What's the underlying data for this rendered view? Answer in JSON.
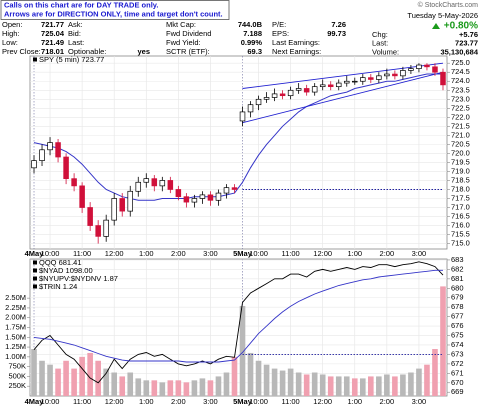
{
  "note": [
    "Calls on this chart are for DAY TRADE only.",
    "Arrows are for DIRECTION ONLY, time and target don't count."
  ],
  "credit": "© StockCharts.com",
  "header": {
    "columns": [
      [
        {
          "label": "Open:",
          "value": "721.77"
        },
        {
          "label": "High:",
          "value": "725.04"
        },
        {
          "label": "Low:",
          "value": "721.49"
        },
        {
          "label": "Prev Close:",
          "value": "718.01"
        }
      ],
      [
        {
          "label": "Ask:"
        },
        {
          "label": "Bid:"
        },
        {
          "label": "Last:"
        },
        {
          "label": "Optionable:",
          "value": "yes"
        }
      ],
      [
        {
          "label": "Mkt Cap:",
          "value": "744.0B"
        },
        {
          "label": "Fwd Dividend",
          "value": "7.188"
        },
        {
          "label": "Fwd Yield:",
          "value": "0.99%"
        },
        {
          "label": "SCTR (ETF):",
          "value": "69.3"
        }
      ],
      [
        {
          "label": "P/E:",
          "value": "7.26"
        },
        {
          "label": "EPS:",
          "value": "99.73"
        },
        {
          "label": "Last Earnings:"
        },
        {
          "label": "Next Earnings:"
        }
      ]
    ],
    "date": "Tuesday  5-May-2026",
    "change_pct": "+0.80%",
    "summary": [
      {
        "label": "Chg:",
        "value": "+5.76"
      },
      {
        "label": "Last:",
        "value": "723.77"
      },
      {
        "label": "Volume:",
        "value": "35,130,684"
      }
    ]
  },
  "chart_data": [
    {
      "type": "candlestick",
      "legend": "SPY (5 min) 723.77",
      "categories": [
        "4May",
        null,
        "10:00",
        null,
        null,
        null,
        "11:00",
        null,
        null,
        null,
        "12:00",
        null,
        null,
        null,
        "1:00",
        null,
        null,
        null,
        "2:00",
        null,
        null,
        null,
        "3:00",
        null,
        null,
        null,
        "5May",
        null,
        "10:00",
        null,
        null,
        null,
        "11:00",
        null,
        null,
        null,
        "12:00",
        null,
        null,
        null,
        "1:00",
        null,
        null,
        null,
        "2:00",
        null,
        null,
        null,
        "3:00",
        null,
        null,
        null
      ],
      "open": [
        719.2,
        719.6,
        720.2,
        720.6,
        719.8,
        718.6,
        718.2,
        717.0,
        716.0,
        715.4,
        716.3,
        717.5,
        716.8,
        717.9,
        718.4,
        718.6,
        718.2,
        718.5,
        718.0,
        717.6,
        717.3,
        717.5,
        717.7,
        717.4,
        717.8,
        718.1,
        721.8,
        722.3,
        722.7,
        723.0,
        723.1,
        723.3,
        723.2,
        723.5,
        723.6,
        723.4,
        723.7,
        723.8,
        723.7,
        723.9,
        724.0,
        724.0,
        724.2,
        724.1,
        724.3,
        724.4,
        724.3,
        724.6,
        724.7,
        724.9,
        724.8,
        724.5
      ],
      "high": [
        719.9,
        720.5,
        720.9,
        720.8,
        720.0,
        718.9,
        718.4,
        717.3,
        716.3,
        716.6,
        717.8,
        717.8,
        718.2,
        718.7,
        718.9,
        718.8,
        718.7,
        718.7,
        718.2,
        717.8,
        717.7,
        717.9,
        717.9,
        718.0,
        718.3,
        718.3,
        722.6,
        722.9,
        723.2,
        723.4,
        723.6,
        723.5,
        723.7,
        723.9,
        723.8,
        723.9,
        724.1,
        724.0,
        724.1,
        724.3,
        724.2,
        724.4,
        724.4,
        724.5,
        724.7,
        724.6,
        724.8,
        724.9,
        725.0,
        725.0,
        725.0,
        724.7
      ],
      "low": [
        718.9,
        719.3,
        719.9,
        719.5,
        718.3,
        717.9,
        716.7,
        715.7,
        715.0,
        715.1,
        716.0,
        716.5,
        716.5,
        717.6,
        718.1,
        717.9,
        717.9,
        717.8,
        717.4,
        717.0,
        717.0,
        717.2,
        717.1,
        717.1,
        717.5,
        717.8,
        721.5,
        722.0,
        722.4,
        722.8,
        722.9,
        723.0,
        723.0,
        723.3,
        723.2,
        723.2,
        723.5,
        723.5,
        723.5,
        723.7,
        723.8,
        723.8,
        723.9,
        723.9,
        724.1,
        724.1,
        724.1,
        724.4,
        724.5,
        724.6,
        724.3,
        723.5
      ],
      "close": [
        719.6,
        720.2,
        720.6,
        719.8,
        718.6,
        718.2,
        717.0,
        716.0,
        715.4,
        716.3,
        717.5,
        716.8,
        717.9,
        718.4,
        718.6,
        718.2,
        718.5,
        718.0,
        717.6,
        717.3,
        717.5,
        717.7,
        717.4,
        717.8,
        718.1,
        718.0,
        722.3,
        722.7,
        723.0,
        723.1,
        723.3,
        723.2,
        723.5,
        723.6,
        723.4,
        723.7,
        723.8,
        723.7,
        723.9,
        724.0,
        724.0,
        724.2,
        724.1,
        724.3,
        724.4,
        724.3,
        724.6,
        724.7,
        724.9,
        724.8,
        724.5,
        723.8
      ],
      "up_color": "#000000",
      "down_color": "#d0103a",
      "overlays": [
        {
          "color": "#3535c8",
          "values": [
            720.6,
            720.5,
            720.4,
            720.3,
            720.1,
            719.8,
            719.4,
            718.9,
            718.4,
            718.0,
            717.8,
            717.6,
            717.5,
            717.4,
            717.4,
            717.4,
            717.5,
            717.5,
            717.5,
            717.5,
            717.6,
            717.6,
            717.6,
            717.6,
            717.7,
            717.8,
            718.4,
            719.2,
            719.9,
            720.5,
            721.0,
            721.5,
            721.9,
            722.3,
            722.6,
            722.8,
            723.0,
            723.2,
            723.3,
            723.4,
            723.6,
            723.7,
            723.8,
            723.9,
            724.0,
            724.0,
            724.1,
            724.2,
            724.3,
            724.4,
            724.4,
            724.4
          ]
        }
      ],
      "trendlines": [
        {
          "color": "#2020d0",
          "style": "solid",
          "x": [
            26,
            51
          ],
          "y": [
            723.6,
            725.0
          ]
        },
        {
          "color": "#2020d0",
          "style": "solid",
          "x": [
            26,
            51
          ],
          "y": [
            721.7,
            724.5
          ]
        },
        {
          "color": "#2020a0",
          "style": "dotted",
          "x": [
            26,
            51
          ],
          "y": [
            718.0,
            718.0
          ]
        }
      ],
      "ylim": [
        714.7,
        725.4
      ],
      "yticks": [
        {
          "value": 715,
          "label": "715.0"
        },
        {
          "value": 715.5,
          "label": "715.5"
        },
        {
          "value": 716,
          "label": "716.0"
        },
        {
          "value": 716.5,
          "label": "716.5"
        },
        {
          "value": 717,
          "label": "717.0"
        },
        {
          "value": 717.5,
          "label": "717.5"
        },
        {
          "value": 718,
          "label": "718.0"
        },
        {
          "value": 718.5,
          "label": "718.5"
        },
        {
          "value": 719,
          "label": "719.0"
        },
        {
          "value": 719.5,
          "label": "719.5"
        },
        {
          "value": 720,
          "label": "720.0"
        },
        {
          "value": 720.5,
          "label": "720.5"
        },
        {
          "value": 721,
          "label": "721.0"
        },
        {
          "value": 721.5,
          "label": "721.5"
        },
        {
          "value": 722,
          "label": "722.0"
        },
        {
          "value": 722.5,
          "label": "722.5"
        },
        {
          "value": 723,
          "label": "723.0"
        },
        {
          "value": 723.5,
          "label": "723.5"
        },
        {
          "value": 724,
          "label": "724.0"
        },
        {
          "value": 724.5,
          "label": "724.5"
        },
        {
          "value": 725,
          "label": "725.0"
        }
      ],
      "grid": true
    },
    {
      "type": "volume",
      "legend": [
        {
          "text": "QQQ 681.41",
          "color": "#000000"
        },
        {
          "text": "$NYAD 1098.00",
          "color": "#000000"
        },
        {
          "text": "$NYUPV:$NYDNV 1.87",
          "color": "#000000"
        },
        {
          "text": "$TRIN 1.24",
          "color": "#000000"
        }
      ],
      "categories": [
        "4May",
        null,
        "10:00",
        null,
        null,
        null,
        "11:00",
        null,
        null,
        null,
        "12:00",
        null,
        null,
        null,
        "1:00",
        null,
        null,
        null,
        "2:00",
        null,
        null,
        null,
        "3:00",
        null,
        null,
        null,
        "5May",
        null,
        "10:00",
        null,
        null,
        null,
        "11:00",
        null,
        null,
        null,
        "12:00",
        null,
        null,
        null,
        "1:00",
        null,
        null,
        null,
        "2:00",
        null,
        null,
        null,
        "3:00",
        null,
        null,
        null
      ],
      "series": [
        {
          "name": "Volume",
          "type": "bar",
          "axis": "y",
          "up_color": "#b8b8b8",
          "down_color": "#f0a0b0",
          "values": [
            1200000,
            900000,
            800000,
            700000,
            900000,
            700000,
            1000000,
            1100000,
            900000,
            700000,
            600000,
            500000,
            600000,
            450000,
            400000,
            400000,
            350000,
            400000,
            400000,
            350000,
            400000,
            450000,
            400000,
            500000,
            600000,
            1000000,
            2300000,
            1100000,
            900000,
            800000,
            700000,
            650000,
            700000,
            600000,
            550000,
            600000,
            550000,
            500000,
            500000,
            500000,
            450000,
            450000,
            500000,
            500000,
            550000,
            500000,
            550000,
            600000,
            700000,
            800000,
            1200000,
            2800000
          ]
        },
        {
          "name": "QQQ",
          "type": "line",
          "axis": "y2",
          "color": "#000000",
          "values": [
            673.5,
            674.5,
            675,
            674,
            673,
            672.5,
            671.5,
            670.5,
            670,
            671,
            672.5,
            671.5,
            672.5,
            673,
            673.2,
            672.8,
            673,
            672.5,
            672,
            671.8,
            672,
            672.3,
            672,
            672.5,
            672.8,
            672.7,
            678.5,
            679.5,
            680,
            680.5,
            681,
            681,
            681.5,
            681.5,
            681.2,
            681.8,
            682,
            681.8,
            682,
            682.2,
            682,
            682.3,
            682.2,
            682.5,
            682.5,
            682.3,
            682.5,
            682.6,
            682.8,
            682.6,
            682.3,
            681.4
          ]
        },
        {
          "type": "line",
          "axis": "y2",
          "color": "#3535c8",
          "values": [
            674.8,
            674.7,
            674.6,
            674.4,
            674.2,
            674.0,
            673.7,
            673.4,
            673.1,
            672.8,
            672.6,
            672.4,
            672.3,
            672.3,
            672.3,
            672.3,
            672.3,
            672.3,
            672.3,
            672.2,
            672.2,
            672.2,
            672.2,
            672.2,
            672.3,
            672.4,
            673.2,
            674.2,
            675.2,
            676.0,
            676.8,
            677.5,
            678.1,
            678.6,
            679.0,
            679.4,
            679.7,
            680.0,
            680.3,
            680.5,
            680.7,
            680.9,
            681.0,
            681.2,
            681.3,
            681.4,
            681.5,
            681.6,
            681.7,
            681.8,
            681.9,
            681.9
          ]
        }
      ],
      "trendlines": [
        {
          "color": "#2020a0",
          "style": "dotted",
          "axis": "y2",
          "x": [
            26,
            51
          ],
          "y": [
            673.0,
            673.0
          ]
        }
      ],
      "ylim": [
        0,
        3500000
      ],
      "yticks": [
        {
          "value": 250000,
          "label": "250K"
        },
        {
          "value": 500000,
          "label": "500K"
        },
        {
          "value": 750000,
          "label": "750K"
        },
        {
          "value": 1000000,
          "label": "1.00M"
        },
        {
          "value": 1250000,
          "label": "1.25M"
        },
        {
          "value": 1500000,
          "label": "1.50M"
        },
        {
          "value": 1750000,
          "label": "1.75M"
        },
        {
          "value": 2000000,
          "label": "2.00M"
        },
        {
          "value": 2250000,
          "label": "2.25M"
        },
        {
          "value": 2500000,
          "label": "2.50M"
        }
      ],
      "y2lim": [
        668.6,
        683.1
      ],
      "y2ticks": [
        669,
        670,
        671,
        672,
        673,
        674,
        675,
        676,
        677,
        678,
        679,
        680,
        681,
        682,
        683
      ],
      "grid": true
    }
  ]
}
